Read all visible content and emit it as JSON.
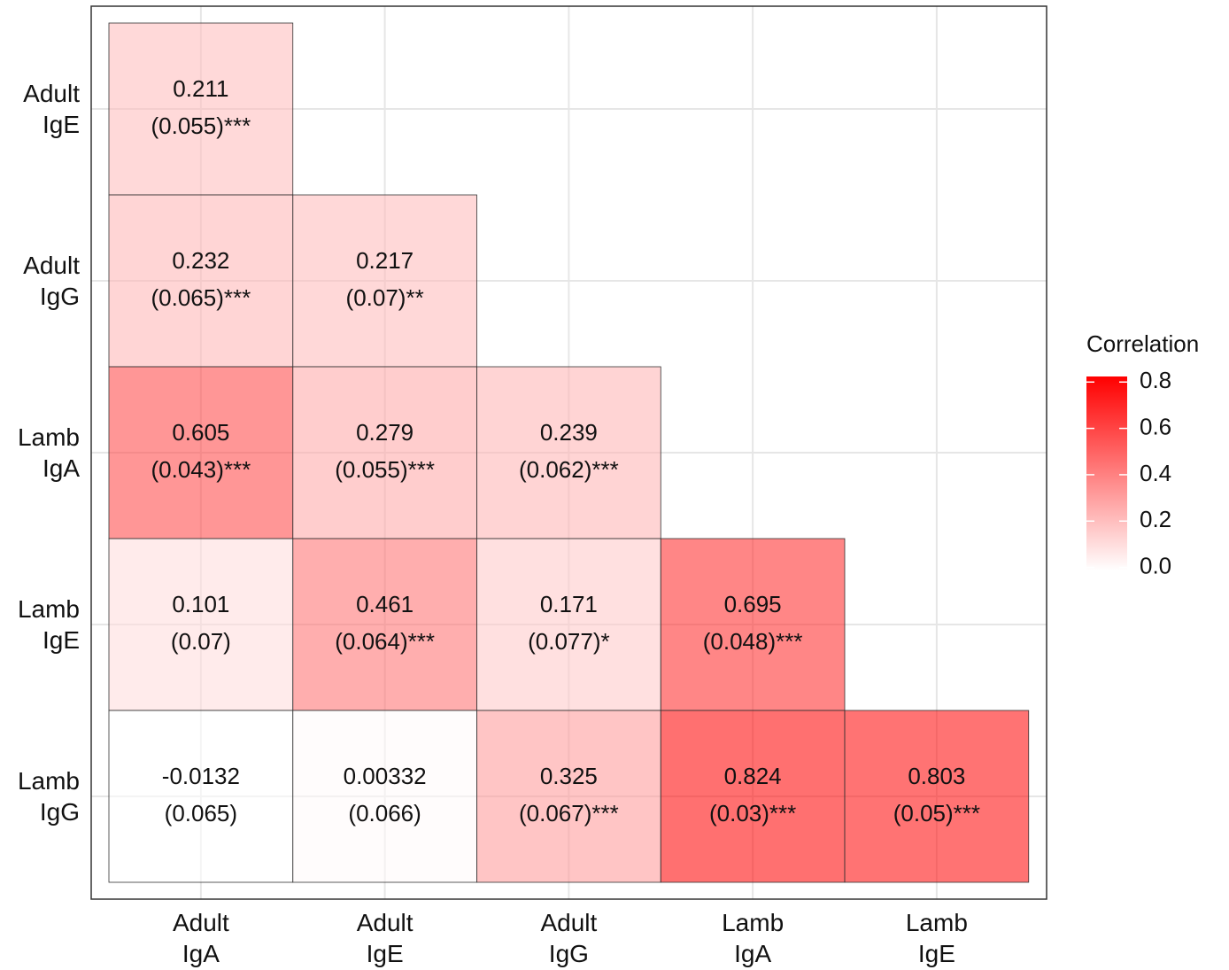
{
  "chart_data": {
    "type": "heatmap",
    "x_categories": [
      "Adult\nIgA",
      "Adult\nIgE",
      "Adult\nIgG",
      "Lamb\nIgA",
      "Lamb\nIgE"
    ],
    "y_categories": [
      "Adult\nIgE",
      "Adult\nIgG",
      "Lamb\nIgA",
      "Lamb\nIgE",
      "Lamb\nIgG"
    ],
    "values": [
      [
        0.211,
        null,
        null,
        null,
        null
      ],
      [
        0.232,
        0.217,
        null,
        null,
        null
      ],
      [
        0.605,
        0.279,
        0.239,
        null,
        null
      ],
      [
        0.101,
        0.461,
        0.171,
        0.695,
        null
      ],
      [
        -0.0132,
        0.00332,
        0.325,
        0.824,
        0.803
      ]
    ],
    "annotations": [
      [
        "(0.055)***",
        null,
        null,
        null,
        null
      ],
      [
        "(0.065)***",
        "(0.07)**",
        null,
        null,
        null
      ],
      [
        "(0.043)***",
        "(0.055)***",
        "(0.062)***",
        null,
        null
      ],
      [
        "(0.07)",
        "(0.064)***",
        "(0.077)*",
        "(0.048)***",
        null
      ],
      [
        "(0.065)",
        "(0.066)",
        "(0.067)***",
        "(0.03)***",
        "(0.05)***"
      ]
    ],
    "grid": true,
    "colorbar": {
      "title": "Correlation",
      "colors": [
        "#ffffff",
        "#ff0000"
      ],
      "clim": [
        -0.0132,
        0.824
      ],
      "ticks": [
        {
          "value": 0,
          "label": "0.0"
        },
        0.2,
        0.4,
        0.6,
        0.8
      ]
    }
  }
}
